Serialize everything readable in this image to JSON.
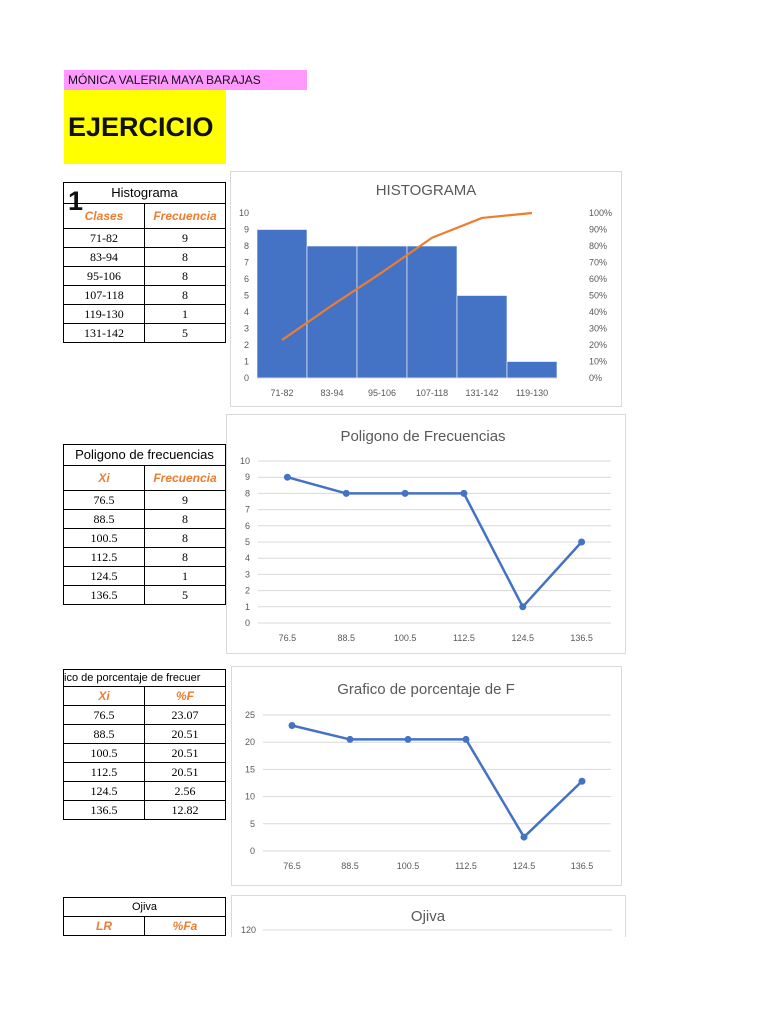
{
  "header": {
    "author": "MÓNICA VALERIA MAYA BARAJAS",
    "title": "EJERCICIO 1"
  },
  "colors": {
    "bar": "#4472c4",
    "line": "#ed7d31",
    "series": "#4472c4",
    "grid": "#d9d9d9"
  },
  "tables": {
    "histograma": {
      "caption": "Histograma",
      "headers": [
        "Clases",
        "Frecuencia"
      ],
      "rows": [
        [
          "71-82",
          "9"
        ],
        [
          "83-94",
          "8"
        ],
        [
          "95-106",
          "8"
        ],
        [
          "107-118",
          "8"
        ],
        [
          "119-130",
          "1"
        ],
        [
          "131-142",
          "5"
        ]
      ]
    },
    "poligono": {
      "caption": "Poligono de frecuencias",
      "headers": [
        "Xi",
        "Frecuencia"
      ],
      "rows": [
        [
          "76.5",
          "9"
        ],
        [
          "88.5",
          "8"
        ],
        [
          "100.5",
          "8"
        ],
        [
          "112.5",
          "8"
        ],
        [
          "124.5",
          "1"
        ],
        [
          "136.5",
          "5"
        ]
      ]
    },
    "porcentaje": {
      "caption": "ico de porcentaje de frecuer",
      "headers": [
        "Xi",
        "%F"
      ],
      "rows": [
        [
          "76.5",
          "23.07"
        ],
        [
          "88.5",
          "20.51"
        ],
        [
          "100.5",
          "20.51"
        ],
        [
          "112.5",
          "20.51"
        ],
        [
          "124.5",
          "2.56"
        ],
        [
          "136.5",
          "12.82"
        ]
      ]
    },
    "ojiva": {
      "caption": "Ojiva",
      "headers": [
        "LR",
        "%Fa"
      ]
    }
  },
  "chart_data": [
    {
      "type": "bar",
      "title": "HISTOGRAMA",
      "categories": [
        "71-82",
        "83-94",
        "95-106",
        "107-118",
        "131-142",
        "119-130"
      ],
      "values": [
        9,
        8,
        8,
        8,
        5,
        1
      ],
      "ylim": [
        0,
        10
      ],
      "yticks": [
        "0",
        "1",
        "2",
        "3",
        "4",
        "5",
        "6",
        "7",
        "8",
        "9",
        "10"
      ],
      "secondary_line": [
        23,
        44,
        64,
        85,
        97,
        100
      ],
      "y2lim": [
        0,
        100
      ],
      "y2ticks": [
        "0%",
        "10%",
        "20%",
        "30%",
        "40%",
        "50%",
        "60%",
        "70%",
        "80%",
        "90%",
        "100%"
      ],
      "grid": false
    },
    {
      "type": "line",
      "title": "Poligono de Frecuencias",
      "categories": [
        "76.5",
        "88.5",
        "100.5",
        "112.5",
        "124.5",
        "136.5"
      ],
      "values": [
        9,
        8,
        8,
        8,
        1,
        5
      ],
      "ylim": [
        0,
        10
      ],
      "yticks": [
        "0",
        "1",
        "2",
        "3",
        "4",
        "5",
        "6",
        "7",
        "8",
        "9",
        "10"
      ],
      "grid": true
    },
    {
      "type": "line",
      "title": "Grafico de porcentaje de F",
      "categories": [
        "76.5",
        "88.5",
        "100.5",
        "112.5",
        "124.5",
        "136.5"
      ],
      "values": [
        23.07,
        20.51,
        20.51,
        20.51,
        2.56,
        12.82
      ],
      "ylim": [
        0,
        25
      ],
      "yticks": [
        "0",
        "5",
        "10",
        "15",
        "20",
        "25"
      ],
      "grid": true
    },
    {
      "type": "line",
      "title": "Ojiva",
      "yticks": [
        "120"
      ],
      "grid": true
    }
  ]
}
